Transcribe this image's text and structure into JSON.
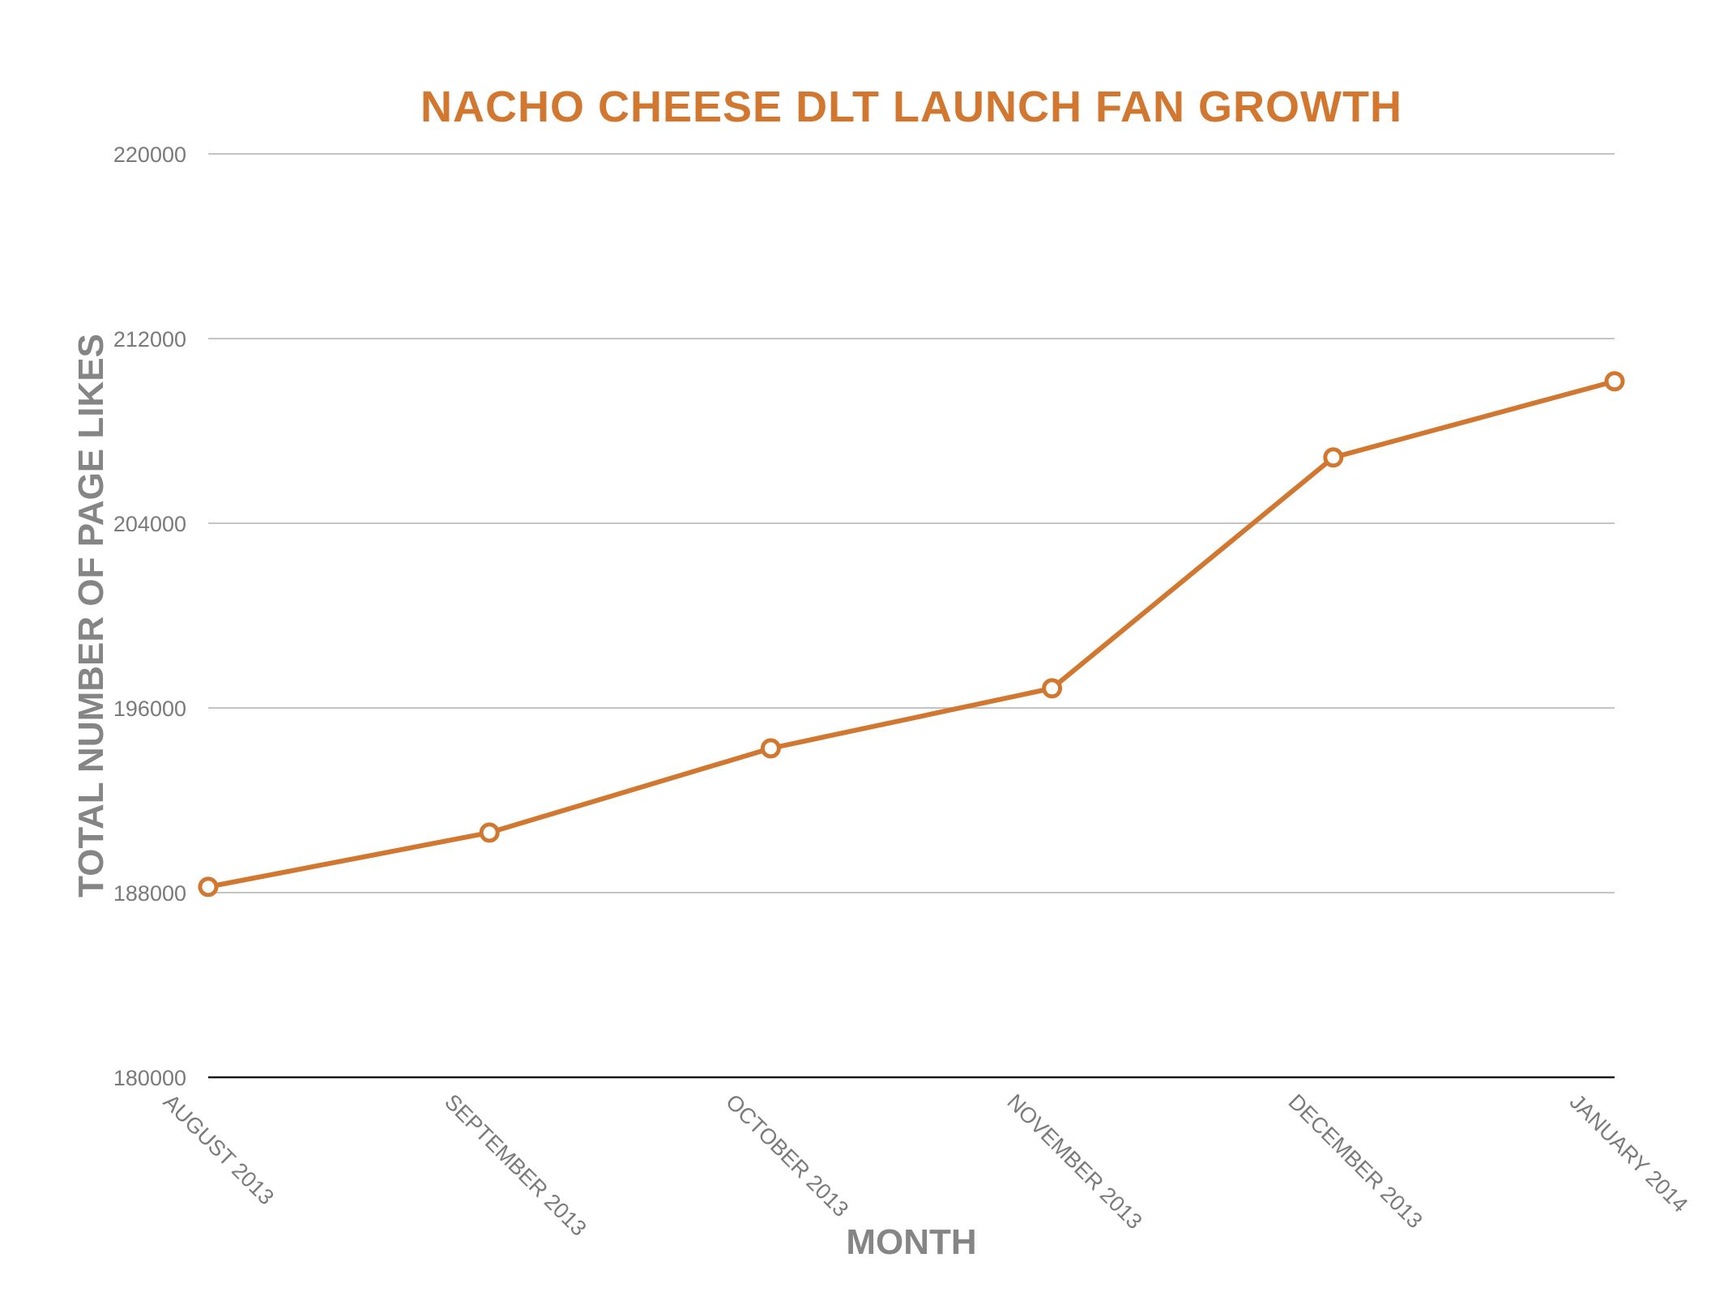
{
  "chart_data": {
    "type": "line",
    "title": "NACHO CHEESE DLT LAUNCH FAN GROWTH",
    "xlabel": "MONTH",
    "ylabel": "TOTAL NUMBER OF PAGE LIKES",
    "categories": [
      "AUGUST 2013",
      "SEPTEMBER 2013",
      "OCTOBER 2013",
      "NOVEMBER 2013",
      "DECEMBER 2013",
      "JANUARY 2014"
    ],
    "series": [
      {
        "values": [
          188250,
          190600,
          194250,
          196850,
          206850,
          210150
        ]
      }
    ],
    "ylim": [
      180000,
      220000
    ],
    "yticks": [
      "180000",
      "188000",
      "196000",
      "204000",
      "212000",
      "220000"
    ],
    "grid": true,
    "legend": "none",
    "colors": {
      "series": "#d2772f",
      "title": "#d2772f",
      "axis_title": "#858585"
    }
  }
}
